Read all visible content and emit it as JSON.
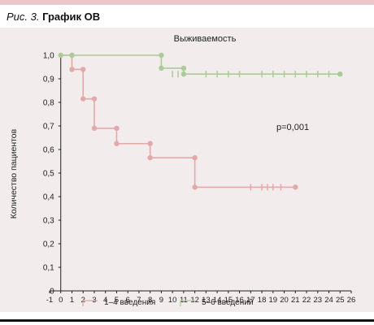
{
  "figure": {
    "caption_prefix": "Рис. 3.",
    "caption_title": "График ОВ"
  },
  "colors": {
    "band": "#ebc7c7",
    "panel": "#f3ecec",
    "series_1": "#e2a9a9",
    "series_2": "#a9cc98",
    "axis": "#222222"
  },
  "chart_data": {
    "type": "line",
    "subtype": "kaplan-meier-step",
    "title": "Выживаемость",
    "xlabel": "",
    "ylabel": "Количество пациентов",
    "xlim": [
      -1,
      26
    ],
    "ylim": [
      0,
      1.0
    ],
    "x_ticks": [
      "-1",
      "0",
      "1",
      "2",
      "3",
      "4",
      "5",
      "6",
      "7",
      "8",
      "9",
      "10",
      "11",
      "12",
      "13",
      "14",
      "15",
      "16",
      "17",
      "18",
      "19",
      "20",
      "21",
      "22",
      "23",
      "24",
      "25",
      "26"
    ],
    "y_ticks": [
      "0",
      "0,1",
      "0,2",
      "0,3",
      "0,4",
      "0,5",
      "0,6",
      "0,7",
      "0,8",
      "0,9",
      "1,0"
    ],
    "annotation": "p=0,001",
    "grid": false,
    "legend_position": "bottom-center",
    "series": [
      {
        "name": "1–4 введения",
        "color": "#e2a9a9",
        "steps": [
          [
            0,
            1.0
          ],
          [
            1,
            0.94
          ],
          [
            2,
            0.815
          ],
          [
            3,
            0.69
          ],
          [
            5,
            0.625
          ],
          [
            8,
            0.565
          ],
          [
            12,
            0.44
          ],
          [
            21,
            0.44
          ]
        ],
        "events": [
          [
            1,
            1.0
          ],
          [
            1,
            0.94
          ],
          [
            2,
            0.94
          ],
          [
            2,
            0.815
          ],
          [
            3,
            0.815
          ],
          [
            3,
            0.69
          ],
          [
            5,
            0.69
          ],
          [
            5,
            0.625
          ],
          [
            8,
            0.625
          ],
          [
            8,
            0.565
          ],
          [
            12,
            0.565
          ],
          [
            12,
            0.44
          ],
          [
            21,
            0.44
          ]
        ],
        "censored": [
          17,
          18,
          18.5,
          19,
          19.7
        ]
      },
      {
        "name": "5–6 введений",
        "color": "#a9cc98",
        "steps": [
          [
            0,
            1.0
          ],
          [
            9,
            0.945
          ],
          [
            11,
            0.92
          ],
          [
            25,
            0.92
          ]
        ],
        "events": [
          [
            0,
            1.0
          ],
          [
            1,
            1.0
          ],
          [
            9,
            1.0
          ],
          [
            9,
            0.945
          ],
          [
            11,
            0.945
          ],
          [
            11,
            0.92
          ],
          [
            25,
            0.92
          ]
        ],
        "censored": [
          10,
          10.5,
          13,
          14,
          15,
          16,
          18,
          19,
          20,
          21,
          22,
          23,
          24
        ]
      }
    ]
  }
}
